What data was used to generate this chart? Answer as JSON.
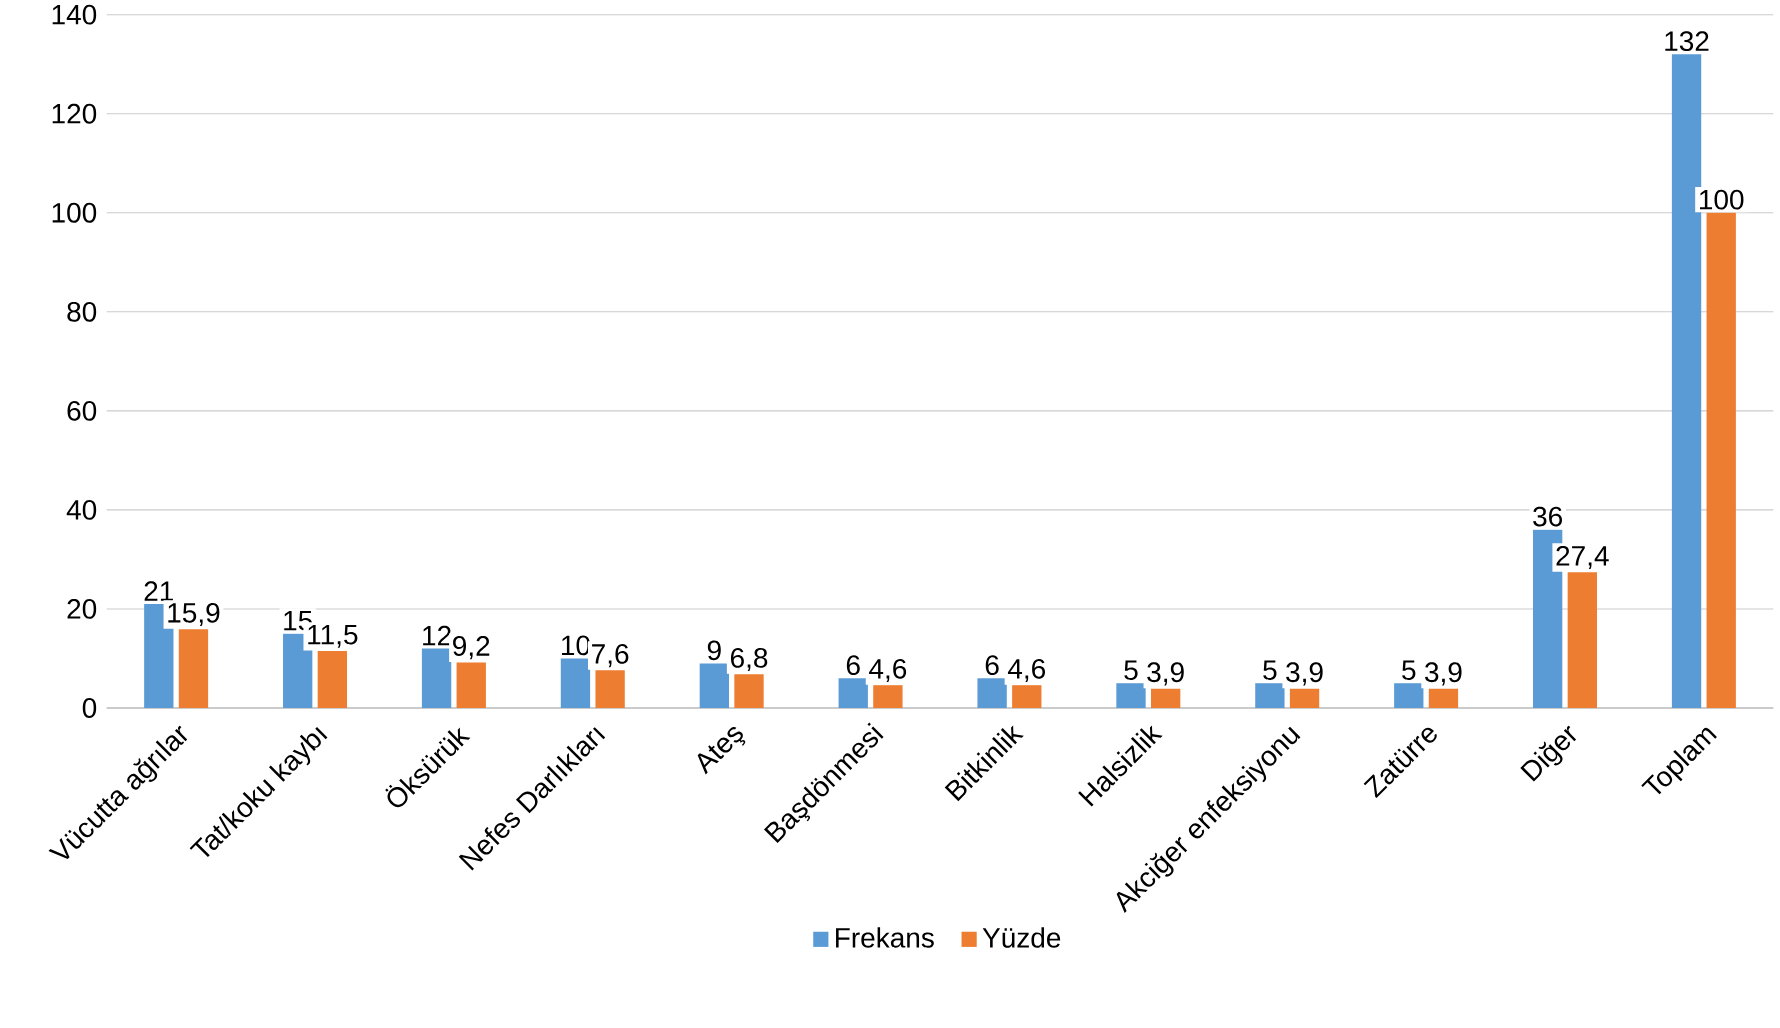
{
  "chart_data": {
    "type": "bar",
    "categories": [
      "Vücutta ağrılar",
      "Tat/koku kaybı",
      "Öksürük",
      "Nefes Darlıkları",
      "Ateş",
      "Başdönmesi",
      "Bitkinlik",
      "Halsizlik",
      "Akciğer enfeksiyonu",
      "Zatürre",
      "Diğer",
      "Toplam"
    ],
    "series": [
      {
        "name": "Frekans",
        "color": "#5b9bd5",
        "values": [
          21,
          15,
          12,
          10,
          9,
          6,
          6,
          5,
          5,
          5,
          36,
          132
        ],
        "value_labels": [
          "21",
          "15",
          "12",
          "10",
          "9",
          "6",
          "6",
          "5",
          "5",
          "5",
          "36",
          "132"
        ]
      },
      {
        "name": "Yüzde",
        "color": "#ed7d31",
        "values": [
          15.9,
          11.5,
          9.2,
          7.6,
          6.8,
          4.6,
          4.6,
          3.9,
          3.9,
          3.9,
          27.4,
          100
        ],
        "value_labels": [
          "15,9",
          "11,5",
          "9,2",
          "7,6",
          "6,8",
          "4,6",
          "4,6",
          "3,9",
          "3,9",
          "3,9",
          "27,4",
          "100"
        ]
      }
    ],
    "ylim": [
      0,
      140
    ],
    "yticks": [
      0,
      20,
      40,
      60,
      80,
      100,
      120,
      140
    ],
    "grid": "y",
    "legend": "bottom"
  }
}
